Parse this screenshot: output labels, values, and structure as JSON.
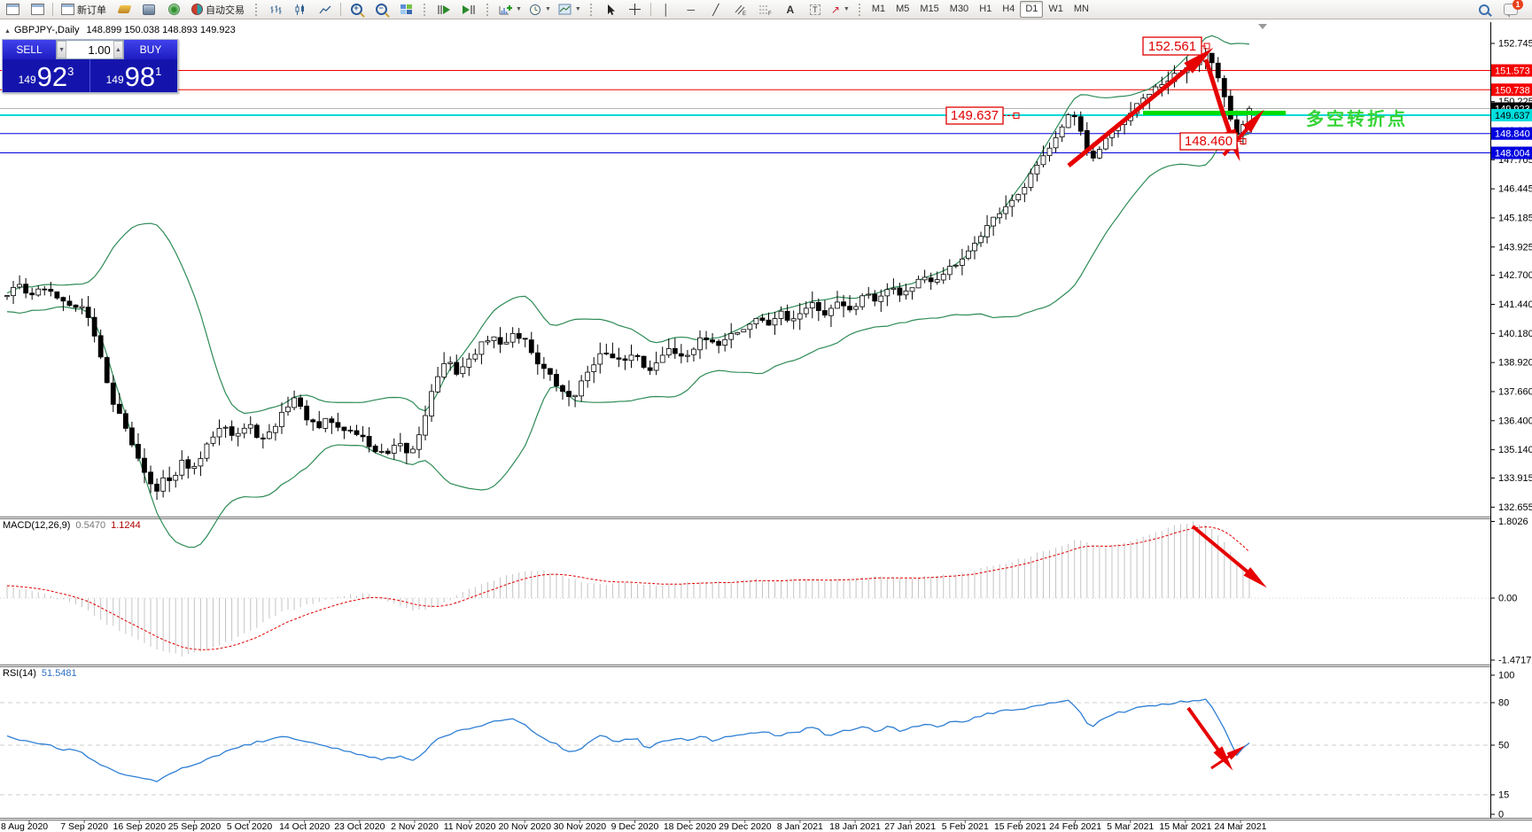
{
  "toolbar": {
    "new_order_label": "新订单",
    "autotrading_label": "自动交易",
    "timeframes": [
      "M1",
      "M5",
      "M15",
      "M30",
      "H1",
      "H4",
      "D1",
      "W1",
      "MN"
    ],
    "active_timeframe": "D1",
    "notification_count": "1"
  },
  "quote_panel": {
    "sell_label": "SELL",
    "buy_label": "BUY",
    "volume": "1.00",
    "sell_price_prefix": "149",
    "sell_price_main": "92",
    "sell_price_sup": "3",
    "buy_price_prefix": "149",
    "buy_price_main": "98",
    "buy_price_sup": "1"
  },
  "chart_header": {
    "collapse_icon": "▲",
    "symbol_period": "GBPJPY-,Daily",
    "ohlc": "148.899 150.038 148.893 149.923"
  },
  "macd_panel": {
    "label": "MACD(12,26,9)",
    "value_main": "0.5470",
    "value_signal": "1.1244"
  },
  "rsi_panel": {
    "label": "RSI(14)",
    "value": "51.5481"
  },
  "annotations": {
    "peak_label": "152.561",
    "pivot_label": "149.637",
    "low_label": "148.460",
    "note_text": "多空转折点"
  },
  "chart_data": {
    "type": "candlestick",
    "symbol": "GBPJPY-",
    "period": "Daily",
    "last_candle": {
      "open": 148.899,
      "high": 150.038,
      "low": 148.893,
      "close": 149.923
    },
    "key_levels": {
      "swing_high": 152.561,
      "pivot": 149.637,
      "swing_low": 148.46
    },
    "horizontal_lines": [
      {
        "price": 151.573,
        "color": "#f00000",
        "width": 1
      },
      {
        "price": 150.738,
        "color": "#f00000",
        "width": 1
      },
      {
        "price": 149.923,
        "color": "#b4b4b4",
        "width": 1
      },
      {
        "price": 149.637,
        "color": "#00d8d8",
        "width": 2
      },
      {
        "price": 148.84,
        "color": "#0000e0",
        "width": 1
      },
      {
        "price": 148.004,
        "color": "#0000e0",
        "width": 1
      }
    ],
    "axis_badges": [
      {
        "price": "151.573",
        "bg": "#f50000",
        "fg": "#ffffff"
      },
      {
        "price": "150.738",
        "bg": "#f50000",
        "fg": "#ffffff"
      },
      {
        "price": "149.923",
        "bg": "#000000",
        "fg": "#ffffff"
      },
      {
        "price": "149.637",
        "bg": "#00dede",
        "fg": "#000000"
      },
      {
        "price": "148.840",
        "bg": "#0000e0",
        "fg": "#ffffff"
      },
      {
        "price": "148.004",
        "bg": "#0000e0",
        "fg": "#ffffff"
      }
    ],
    "price_ticks": [
      "152.745",
      "151.485",
      "150.225",
      "148.965",
      "147.705",
      "146.445",
      "145.185",
      "143.925",
      "142.700",
      "141.440",
      "140.180",
      "138.920",
      "137.660",
      "136.400",
      "135.140",
      "133.915",
      "132.655"
    ],
    "date_labels": [
      "8 Aug 2020",
      "7 Sep 2020",
      "16 Sep 2020",
      "25 Sep 2020",
      "5 Oct 2020",
      "14 Oct 2020",
      "23 Oct 2020",
      "2 Nov 2020",
      "11 Nov 2020",
      "20 Nov 2020",
      "30 Nov 2020",
      "9 Dec 2020",
      "18 Dec 2020",
      "29 Dec 2020",
      "8 Jan 2021",
      "18 Jan 2021",
      "27 Jan 2021",
      "5 Feb 2021",
      "15 Feb 2021",
      "24 Feb 2021",
      "5 Mar 2021",
      "15 Mar 2021",
      "24 Mar 2021"
    ],
    "bollinger": {
      "period": 20,
      "deviation": 2,
      "color": "#2E8B57"
    },
    "macd": {
      "params": "12,26,9",
      "current_main": 0.547,
      "current_signal": 1.1244,
      "axis": [
        "1.8026",
        "0.00",
        "-1.4717"
      ],
      "waypoints": [
        [
          0,
          0.3
        ],
        [
          0.03,
          0.1
        ],
        [
          0.06,
          -0.2
        ],
        [
          0.08,
          -0.6
        ],
        [
          0.1,
          -0.9
        ],
        [
          0.12,
          -1.2
        ],
        [
          0.14,
          -1.35
        ],
        [
          0.16,
          -1.25
        ],
        [
          0.18,
          -1.0
        ],
        [
          0.2,
          -0.7
        ],
        [
          0.22,
          -0.35
        ],
        [
          0.25,
          -0.1
        ],
        [
          0.27,
          0.05
        ],
        [
          0.29,
          0.1
        ],
        [
          0.31,
          -0.1
        ],
        [
          0.33,
          -0.3
        ],
        [
          0.35,
          -0.15
        ],
        [
          0.37,
          0.2
        ],
        [
          0.4,
          0.5
        ],
        [
          0.42,
          0.65
        ],
        [
          0.44,
          0.6
        ],
        [
          0.46,
          0.4
        ],
        [
          0.48,
          0.3
        ],
        [
          0.5,
          0.35
        ],
        [
          0.52,
          0.3
        ],
        [
          0.54,
          0.35
        ],
        [
          0.56,
          0.4
        ],
        [
          0.58,
          0.35
        ],
        [
          0.6,
          0.45
        ],
        [
          0.62,
          0.4
        ],
        [
          0.64,
          0.45
        ],
        [
          0.66,
          0.4
        ],
        [
          0.68,
          0.45
        ],
        [
          0.7,
          0.5
        ],
        [
          0.72,
          0.45
        ],
        [
          0.74,
          0.5
        ],
        [
          0.76,
          0.55
        ],
        [
          0.78,
          0.65
        ],
        [
          0.8,
          0.8
        ],
        [
          0.82,
          0.95
        ],
        [
          0.84,
          1.15
        ],
        [
          0.86,
          1.35
        ],
        [
          0.87,
          1.3
        ],
        [
          0.88,
          1.2
        ],
        [
          0.9,
          1.3
        ],
        [
          0.92,
          1.5
        ],
        [
          0.94,
          1.7
        ],
        [
          0.955,
          1.8026
        ],
        [
          0.97,
          1.65
        ],
        [
          0.98,
          1.3
        ],
        [
          0.99,
          0.9
        ],
        [
          1,
          0.547
        ]
      ]
    },
    "rsi": {
      "period": 14,
      "current": 51.5481,
      "levels": [
        80,
        50,
        15
      ],
      "axis": [
        "100",
        "80",
        "50",
        "15",
        "0"
      ],
      "waypoints": [
        [
          0,
          56
        ],
        [
          0.03,
          50
        ],
        [
          0.06,
          45
        ],
        [
          0.08,
          34
        ],
        [
          0.1,
          28
        ],
        [
          0.12,
          24
        ],
        [
          0.14,
          33
        ],
        [
          0.16,
          40
        ],
        [
          0.18,
          46
        ],
        [
          0.2,
          52
        ],
        [
          0.22,
          56
        ],
        [
          0.24,
          52
        ],
        [
          0.26,
          48
        ],
        [
          0.284,
          44
        ],
        [
          0.3,
          40
        ],
        [
          0.315,
          42
        ],
        [
          0.328,
          40
        ],
        [
          0.35,
          56
        ],
        [
          0.372,
          62
        ],
        [
          0.39,
          66
        ],
        [
          0.407,
          68
        ],
        [
          0.417,
          64
        ],
        [
          0.43,
          56
        ],
        [
          0.447,
          48
        ],
        [
          0.455,
          44
        ],
        [
          0.47,
          52
        ],
        [
          0.48,
          58
        ],
        [
          0.49,
          52
        ],
        [
          0.506,
          55
        ],
        [
          0.515,
          48
        ],
        [
          0.53,
          54
        ],
        [
          0.55,
          54
        ],
        [
          0.56,
          58
        ],
        [
          0.57,
          52
        ],
        [
          0.58,
          56
        ],
        [
          0.594,
          58
        ],
        [
          0.61,
          60
        ],
        [
          0.62,
          56
        ],
        [
          0.638,
          60
        ],
        [
          0.65,
          63
        ],
        [
          0.66,
          57
        ],
        [
          0.676,
          60
        ],
        [
          0.69,
          64
        ],
        [
          0.7,
          59
        ],
        [
          0.71,
          64
        ],
        [
          0.72,
          60
        ],
        [
          0.727,
          62
        ],
        [
          0.74,
          66
        ],
        [
          0.75,
          63
        ],
        [
          0.76,
          66
        ],
        [
          0.771,
          66
        ],
        [
          0.78,
          70
        ],
        [
          0.79,
          72
        ],
        [
          0.8,
          74
        ],
        [
          0.815,
          75
        ],
        [
          0.83,
          78
        ],
        [
          0.84,
          80
        ],
        [
          0.856,
          82
        ],
        [
          0.865,
          72
        ],
        [
          0.872,
          62
        ],
        [
          0.88,
          68
        ],
        [
          0.89,
          72
        ],
        [
          0.904,
          75
        ],
        [
          0.92,
          78
        ],
        [
          0.93,
          79
        ],
        [
          0.94,
          80
        ],
        [
          0.95,
          81
        ],
        [
          0.966,
          82
        ],
        [
          0.972,
          74
        ],
        [
          0.977,
          66
        ],
        [
          0.982,
          57
        ],
        [
          0.987,
          48
        ],
        [
          0.99,
          43
        ],
        [
          0.994,
          48
        ],
        [
          1,
          51.5
        ]
      ]
    },
    "close_waypoints": [
      [
        0,
        141.9
      ],
      [
        0.01,
        142.3
      ],
      [
        0.018,
        141.9
      ],
      [
        0.03,
        142.1
      ],
      [
        0.045,
        141.6
      ],
      [
        0.062,
        141.3
      ],
      [
        0.07,
        140.2
      ],
      [
        0.078,
        138.6
      ],
      [
        0.085,
        137.2
      ],
      [
        0.092,
        136.5
      ],
      [
        0.098,
        135.6
      ],
      [
        0.106,
        134.8
      ],
      [
        0.113,
        133.9
      ],
      [
        0.12,
        133.4
      ],
      [
        0.127,
        134.0
      ],
      [
        0.133,
        133.6
      ],
      [
        0.14,
        134.6
      ],
      [
        0.151,
        134.3
      ],
      [
        0.158,
        135.0
      ],
      [
        0.166,
        135.8
      ],
      [
        0.174,
        136.4
      ],
      [
        0.182,
        135.7
      ],
      [
        0.195,
        136.2
      ],
      [
        0.205,
        135.5
      ],
      [
        0.213,
        135.9
      ],
      [
        0.222,
        136.8
      ],
      [
        0.231,
        137.4
      ],
      [
        0.24,
        136.6
      ],
      [
        0.25,
        136.0
      ],
      [
        0.258,
        136.5
      ],
      [
        0.266,
        136.1
      ],
      [
        0.284,
        135.8
      ],
      [
        0.295,
        135.1
      ],
      [
        0.306,
        134.9
      ],
      [
        0.315,
        135.4
      ],
      [
        0.322,
        135.0
      ],
      [
        0.328,
        135.2
      ],
      [
        0.336,
        136.6
      ],
      [
        0.345,
        138.2
      ],
      [
        0.354,
        139.0
      ],
      [
        0.362,
        138.5
      ],
      [
        0.372,
        139.0
      ],
      [
        0.38,
        139.6
      ],
      [
        0.39,
        140.1
      ],
      [
        0.398,
        139.6
      ],
      [
        0.407,
        140.2
      ],
      [
        0.417,
        139.9
      ],
      [
        0.426,
        139.0
      ],
      [
        0.436,
        138.4
      ],
      [
        0.447,
        137.6
      ],
      [
        0.455,
        137.4
      ],
      [
        0.461,
        137.9
      ],
      [
        0.47,
        138.8
      ],
      [
        0.48,
        139.4
      ],
      [
        0.49,
        138.9
      ],
      [
        0.498,
        139.1
      ],
      [
        0.506,
        139.3
      ],
      [
        0.515,
        138.6
      ],
      [
        0.524,
        138.9
      ],
      [
        0.533,
        139.6
      ],
      [
        0.541,
        139.2
      ],
      [
        0.55,
        139.4
      ],
      [
        0.56,
        140.0
      ],
      [
        0.57,
        139.6
      ],
      [
        0.58,
        140.1
      ],
      [
        0.594,
        140.4
      ],
      [
        0.604,
        140.9
      ],
      [
        0.612,
        140.5
      ],
      [
        0.622,
        141.1
      ],
      [
        0.63,
        140.7
      ],
      [
        0.638,
        141.0
      ],
      [
        0.648,
        141.5
      ],
      [
        0.658,
        141.0
      ],
      [
        0.668,
        141.6
      ],
      [
        0.676,
        141.2
      ],
      [
        0.683,
        141.4
      ],
      [
        0.692,
        142.0
      ],
      [
        0.7,
        141.6
      ],
      [
        0.71,
        142.3
      ],
      [
        0.718,
        141.9
      ],
      [
        0.727,
        142.1
      ],
      [
        0.736,
        142.6
      ],
      [
        0.745,
        142.3
      ],
      [
        0.755,
        142.9
      ],
      [
        0.763,
        143.1
      ],
      [
        0.771,
        143.4
      ],
      [
        0.78,
        144.2
      ],
      [
        0.79,
        144.9
      ],
      [
        0.8,
        145.5
      ],
      [
        0.808,
        145.9
      ],
      [
        0.815,
        146.1
      ],
      [
        0.824,
        147.0
      ],
      [
        0.832,
        147.6
      ],
      [
        0.84,
        148.4
      ],
      [
        0.848,
        149.1
      ],
      [
        0.856,
        149.8
      ],
      [
        0.862,
        149.3
      ],
      [
        0.868,
        148.2
      ],
      [
        0.872,
        147.5
      ],
      [
        0.878,
        148.0
      ],
      [
        0.885,
        148.6
      ],
      [
        0.893,
        149.1
      ],
      [
        0.904,
        149.7
      ],
      [
        0.912,
        150.2
      ],
      [
        0.92,
        150.6
      ],
      [
        0.929,
        150.9
      ],
      [
        0.938,
        151.3
      ],
      [
        0.949,
        151.7
      ],
      [
        0.957,
        152.0
      ],
      [
        0.966,
        152.3
      ],
      [
        0.972,
        151.6
      ],
      [
        0.977,
        150.8
      ],
      [
        0.982,
        150.0
      ],
      [
        0.987,
        149.1
      ],
      [
        0.99,
        148.8
      ],
      [
        0.994,
        149.2
      ],
      [
        1,
        149.923
      ]
    ]
  }
}
